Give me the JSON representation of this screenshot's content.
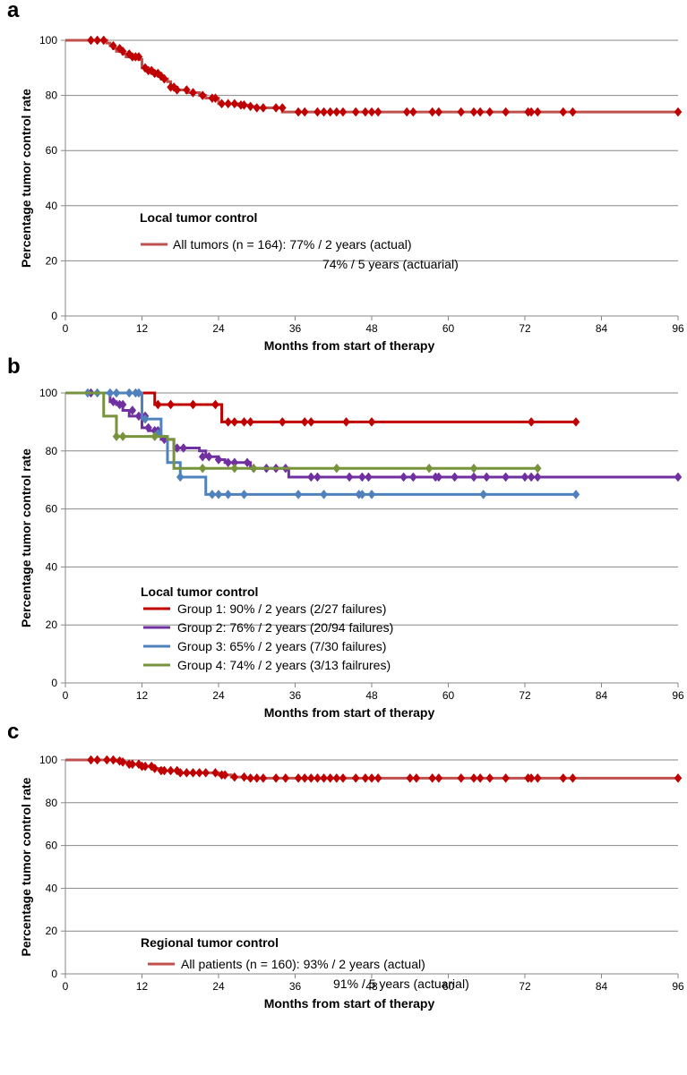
{
  "chart_data": [
    {
      "panel": "a",
      "type": "line",
      "xlabel": "Months from start of therapy",
      "ylabel": "Percentage tumor control rate",
      "xlim": [
        0,
        96
      ],
      "ylim": [
        0,
        100
      ],
      "xticks": [
        0,
        12,
        24,
        36,
        48,
        60,
        72,
        84,
        96
      ],
      "yticks": [
        0,
        20,
        40,
        60,
        80,
        100
      ],
      "grid": "horizontal",
      "legend_title": "Local tumor control",
      "legend_lines": [
        "All tumors (n = 164): 77% / 2 years (actual)",
        "74% / 5 years (actuarial)"
      ],
      "series": [
        {
          "name": "All tumors (n = 164): 77% / 2 years (actual)",
          "color": "#c0504d",
          "marker_color": "#c00000",
          "x": [
            0,
            3.5,
            4,
            4.5,
            5.5,
            6.5,
            7,
            7.5,
            8,
            8.5,
            9,
            9.5,
            10,
            10.5,
            11,
            11.5,
            12,
            12.5,
            13,
            13.5,
            14,
            14.5,
            15,
            15.5,
            16,
            16.5,
            17,
            17.5,
            18,
            19,
            20,
            21,
            22,
            23,
            24,
            25,
            26,
            27,
            28,
            29,
            30,
            31,
            33,
            34,
            36,
            38,
            40,
            41,
            42,
            44,
            46,
            47,
            48,
            52,
            54,
            55,
            57,
            58,
            62,
            63,
            64,
            66,
            68,
            70,
            73,
            74,
            78,
            79,
            96
          ],
          "y": [
            100,
            100,
            100,
            100,
            100,
            99,
            98,
            97,
            96,
            96,
            95,
            94,
            94,
            94,
            94,
            93,
            90,
            89,
            89,
            88,
            88,
            87,
            86,
            86,
            85,
            83,
            83,
            82,
            82,
            81,
            81,
            80,
            79,
            79,
            77,
            77,
            77,
            76.5,
            76.5,
            76,
            75.5,
            75.5,
            75.5,
            74,
            74,
            74,
            74,
            74,
            74,
            74,
            74,
            74,
            74,
            74,
            74,
            74,
            74,
            74,
            74,
            74,
            74,
            74,
            74,
            74,
            74,
            74,
            74,
            74,
            74
          ],
          "markers_x": [
            4,
            5,
            6,
            7.5,
            8.5,
            9,
            10,
            10.5,
            11,
            11.5,
            12.5,
            13,
            13.5,
            14,
            14.5,
            15,
            15.5,
            16.5,
            17,
            17.5,
            19,
            20,
            21.5,
            23,
            23.5,
            24.5,
            25.5,
            26.5,
            27.5,
            28,
            29,
            30,
            31,
            33,
            34,
            36.5,
            37.5,
            39.5,
            40.5,
            41.5,
            42.5,
            43.5,
            45.5,
            47,
            48,
            49,
            53.5,
            54.5,
            57.5,
            58.5,
            62,
            64,
            65,
            66.5,
            69,
            72.5,
            73,
            74,
            78,
            79.5,
            96
          ],
          "markers_y": [
            100,
            100,
            100,
            98,
            97,
            96,
            95,
            94,
            94,
            94,
            90,
            89,
            89,
            88,
            88,
            87,
            86,
            83,
            83,
            82,
            82,
            81,
            80,
            79,
            79,
            77,
            77,
            77,
            76.5,
            76.5,
            76,
            75.5,
            75.5,
            75.5,
            75.5,
            74,
            74,
            74,
            74,
            74,
            74,
            74,
            74,
            74,
            74,
            74,
            74,
            74,
            74,
            74,
            74,
            74,
            74,
            74,
            74,
            74,
            74,
            74,
            74,
            74,
            74
          ]
        }
      ]
    },
    {
      "panel": "b",
      "type": "line",
      "xlabel": "Months from start of therapy",
      "ylabel": "Percentage tumor control rate",
      "xlim": [
        0,
        96
      ],
      "ylim": [
        0,
        100
      ],
      "xticks": [
        0,
        12,
        24,
        36,
        48,
        60,
        72,
        84,
        96
      ],
      "yticks": [
        0,
        20,
        40,
        60,
        80,
        100
      ],
      "grid": "horizontal",
      "legend_title": "Local tumor control",
      "series": [
        {
          "name": "Group 1: 90% / 2 years  (2/27 failures)",
          "color": "#c00000",
          "x": [
            0,
            3.5,
            4,
            14,
            24,
            24.5,
            80
          ],
          "y": [
            100,
            100,
            100,
            96,
            96,
            90,
            90
          ],
          "markers_x": [
            14.5,
            16.5,
            20,
            23.5,
            25.5,
            26.5,
            28,
            29,
            34,
            37.5,
            38.5,
            44,
            48,
            73,
            80
          ],
          "markers_y": [
            96,
            96,
            96,
            96,
            90,
            90,
            90,
            90,
            90,
            90,
            90,
            90,
            90,
            90,
            90
          ]
        },
        {
          "name": "Group 2: 76% / 2 years  (20/94 failures)",
          "color": "#7030a0",
          "x": [
            0,
            3.5,
            7,
            8,
            9,
            10,
            11,
            12,
            13,
            14,
            15,
            17,
            20,
            21,
            22,
            24,
            25,
            27,
            29,
            33,
            34,
            35,
            96
          ],
          "y": [
            100,
            100,
            97,
            96,
            94,
            92,
            92,
            88,
            87,
            86,
            84,
            81,
            81,
            80,
            78,
            77,
            76,
            76,
            74,
            74,
            74,
            71,
            71
          ],
          "markers_x": [
            4,
            7.5,
            8.5,
            9,
            10.5,
            11.5,
            12.5,
            13,
            14,
            14.5,
            15.5,
            17.5,
            18.5,
            21.5,
            22.5,
            24,
            25.5,
            26.5,
            28.5,
            29.5,
            31.5,
            33,
            34.5,
            38.5,
            39.5,
            44.5,
            46.5,
            47.5,
            53,
            54.5,
            58,
            58.5,
            61,
            64,
            66,
            69,
            72,
            73,
            74,
            96
          ],
          "markers_y": [
            100,
            97,
            96,
            96,
            94,
            92,
            92,
            88,
            87,
            87,
            84,
            81,
            81,
            78,
            78,
            77,
            76,
            76,
            76,
            74,
            74,
            74,
            74,
            71,
            71,
            71,
            71,
            71,
            71,
            71,
            71,
            71,
            71,
            71,
            71,
            71,
            71,
            71,
            71,
            71
          ]
        },
        {
          "name": "Group 3: 65% / 2 years  (7/30 failures)",
          "color": "#4f81bd",
          "x": [
            0,
            3.5,
            10,
            12,
            14,
            15,
            16,
            18,
            20,
            22,
            80
          ],
          "y": [
            100,
            100,
            100,
            91,
            91,
            85,
            76,
            71,
            71,
            65,
            65
          ],
          "markers_x": [
            3.5,
            5,
            7,
            8,
            10,
            11,
            11.5,
            12.5,
            14.5,
            18,
            23,
            24,
            25.5,
            28,
            36.5,
            40.5,
            46,
            46.5,
            48,
            65.5,
            80
          ],
          "markers_y": [
            100,
            100,
            100,
            100,
            100,
            100,
            100,
            91,
            86,
            71,
            65,
            65,
            65,
            65,
            65,
            65,
            65,
            65,
            65,
            65,
            65
          ]
        },
        {
          "name": "Group 4: 74% / 2 years  (3/13 failrures)",
          "color": "#77933c",
          "x": [
            0,
            3.5,
            6,
            8,
            14,
            16,
            17,
            74
          ],
          "y": [
            100,
            100,
            92,
            85,
            85,
            84,
            74,
            74
          ],
          "markers_x": [
            8,
            9,
            14,
            21.5,
            26.5,
            29.5,
            42.5,
            57,
            64,
            74
          ],
          "markers_y": [
            85,
            85,
            85,
            74,
            74,
            74,
            74,
            74,
            74,
            74
          ]
        }
      ]
    },
    {
      "panel": "c",
      "type": "line",
      "xlabel": "Months from start of therapy",
      "ylabel": "Percentage tumor control rate",
      "xlim": [
        0,
        96
      ],
      "ylim": [
        0,
        100
      ],
      "xticks": [
        0,
        12,
        24,
        36,
        48,
        60,
        72,
        84,
        96
      ],
      "yticks": [
        0,
        20,
        40,
        60,
        80,
        100
      ],
      "grid": "horizontal",
      "legend_title": "Regional tumor control",
      "legend_lines": [
        "All patients (n = 160): 93% / 2 years (actual)",
        "91% / 5 years (actuarial)"
      ],
      "series": [
        {
          "name": "All patients (n = 160): 93% / 2 years (actual)",
          "color": "#c0504d",
          "marker_color": "#c00000",
          "x": [
            0,
            4,
            6,
            7,
            8,
            9,
            10,
            11,
            12,
            13,
            14,
            15,
            16,
            17,
            18,
            19,
            20,
            22,
            24,
            25,
            26,
            27,
            28,
            96
          ],
          "y": [
            100,
            100,
            100,
            100,
            99.5,
            99,
            98,
            98,
            97,
            97,
            96,
            95,
            95,
            95,
            94,
            94,
            94,
            94,
            93,
            93,
            92,
            92,
            91.5,
            91.5
          ],
          "markers_x": [
            4,
            5,
            6.5,
            7.5,
            8.5,
            9,
            10,
            10.5,
            11.5,
            12,
            12.5,
            13.5,
            14,
            15,
            15.5,
            16.5,
            17.5,
            18,
            19,
            20,
            21,
            22,
            23.5,
            24.5,
            25,
            26.5,
            28,
            29,
            30,
            31,
            33,
            34.5,
            36.5,
            37.5,
            38.5,
            39.5,
            40.5,
            41.5,
            42.5,
            43.5,
            45.5,
            47,
            48,
            49,
            54,
            55,
            57.5,
            58.5,
            62,
            64,
            65,
            66.5,
            69,
            72.5,
            73,
            74,
            78,
            79.5,
            96
          ],
          "markers_y": [
            100,
            100,
            100,
            100,
            99.5,
            99,
            98,
            98,
            98,
            97,
            97,
            97,
            96,
            95,
            95,
            95,
            95,
            94,
            94,
            94,
            94,
            94,
            94,
            93,
            93,
            92,
            92,
            91.5,
            91.5,
            91.5,
            91.5,
            91.5,
            91.5,
            91.5,
            91.5,
            91.5,
            91.5,
            91.5,
            91.5,
            91.5,
            91.5,
            91.5,
            91.5,
            91.5,
            91.5,
            91.5,
            91.5,
            91.5,
            91.5,
            91.5,
            91.5,
            91.5,
            91.5,
            91.5,
            91.5,
            91.5,
            91.5,
            91.5,
            91.5
          ]
        }
      ]
    }
  ]
}
